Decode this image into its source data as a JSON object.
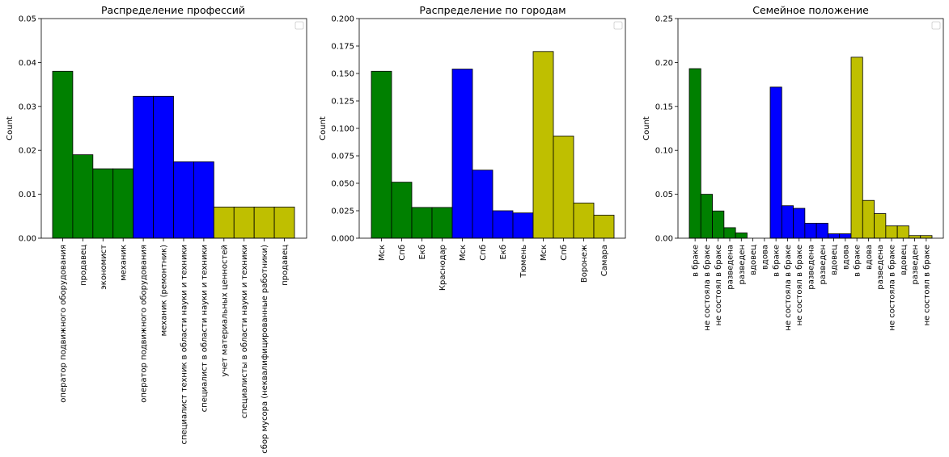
{
  "chart_data": [
    {
      "type": "bar",
      "title": "Распределение профессий",
      "xlabel": "",
      "ylabel": "Count",
      "ylim": [
        0,
        0.05
      ],
      "yticks": [
        "0.00",
        "0.01",
        "0.02",
        "0.03",
        "0.04",
        "0.05"
      ],
      "grid": false,
      "legend": "top-right (empty)",
      "categories": [
        "оператор подвижного оборудования",
        "продавец",
        "экономист",
        "механик",
        "оператор подвижного оборудования",
        "механик (ремонтник)",
        "специалист техник в области науки и техники",
        "специалист в области науки и техники",
        "учет материальных ценностей",
        "специалисты в области науки и техники",
        "сбор мусора (неквалифицированные работники)",
        "продавец"
      ],
      "values": [
        0.038,
        0.019,
        0.0158,
        0.0158,
        0.0323,
        0.0323,
        0.0174,
        0.0174,
        0.0071,
        0.0071,
        0.0071,
        0.0071
      ],
      "bar_colors": [
        "#008000",
        "#008000",
        "#008000",
        "#008000",
        "#0000ff",
        "#0000ff",
        "#0000ff",
        "#0000ff",
        "#bfbf00",
        "#bfbf00",
        "#bfbf00",
        "#bfbf00"
      ]
    },
    {
      "type": "bar",
      "title": "Распределение по городам",
      "xlabel": "",
      "ylabel": "Count",
      "ylim": [
        0,
        0.2
      ],
      "yticks": [
        "0.000",
        "0.025",
        "0.050",
        "0.075",
        "0.100",
        "0.125",
        "0.150",
        "0.175",
        "0.200"
      ],
      "grid": false,
      "legend": "top-right (empty)",
      "categories": [
        "Мск",
        "Спб",
        "Екб",
        "Краснодар",
        "Мск",
        "Спб",
        "Екб",
        "Тюмень",
        "Мск",
        "Спб",
        "Воронеж",
        "Самара"
      ],
      "values": [
        0.152,
        0.051,
        0.028,
        0.028,
        0.154,
        0.062,
        0.025,
        0.023,
        0.17,
        0.093,
        0.032,
        0.021
      ],
      "bar_colors": [
        "#008000",
        "#008000",
        "#008000",
        "#008000",
        "#0000ff",
        "#0000ff",
        "#0000ff",
        "#0000ff",
        "#bfbf00",
        "#bfbf00",
        "#bfbf00",
        "#bfbf00"
      ]
    },
    {
      "type": "bar",
      "title": "Семейное положение",
      "xlabel": "",
      "ylabel": "Count",
      "ylim": [
        0,
        0.25
      ],
      "yticks": [
        "0.00",
        "0.05",
        "0.10",
        "0.15",
        "0.20",
        "0.25"
      ],
      "grid": false,
      "legend": "top-right (empty)",
      "categories": [
        "в браке",
        "не состояла в браке",
        "не состоял в браке",
        "разведена",
        "разведен",
        "вдовец",
        "вдова",
        "в браке",
        "не состояла в браке",
        "не состоял в браке",
        "разведена",
        "разведен",
        "вдовец",
        "вдова",
        "в браке",
        "вдова",
        "разведена",
        "не состояла в браке",
        "вдовец",
        "разведен",
        "не состоял в браке"
      ],
      "values": [
        0.193,
        0.05,
        0.031,
        0.012,
        0.006,
        0.0,
        0.0,
        0.172,
        0.037,
        0.034,
        0.017,
        0.017,
        0.005,
        0.005,
        0.206,
        0.043,
        0.028,
        0.014,
        0.014,
        0.003,
        0.003
      ],
      "bar_colors": [
        "#008000",
        "#008000",
        "#008000",
        "#008000",
        "#008000",
        "#008000",
        "#008000",
        "#0000ff",
        "#0000ff",
        "#0000ff",
        "#0000ff",
        "#0000ff",
        "#0000ff",
        "#0000ff",
        "#bfbf00",
        "#bfbf00",
        "#bfbf00",
        "#bfbf00",
        "#bfbf00",
        "#bfbf00",
        "#bfbf00"
      ]
    }
  ]
}
